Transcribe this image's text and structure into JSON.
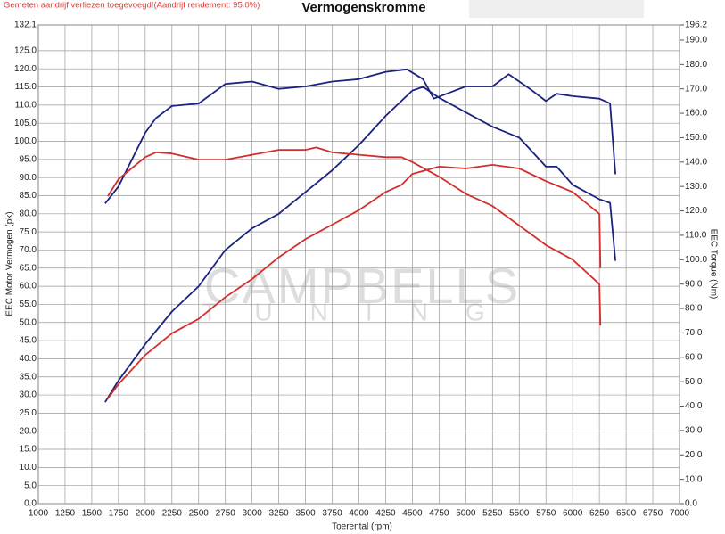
{
  "chart_data": {
    "type": "line",
    "subtitle": "Gemeten aandrijf verliezen toegevoegd!(Aandrijf rendement: 95.0%)",
    "title": "Vermogenskromme",
    "watermark": [
      "CAMPBELLS",
      "TUNING"
    ],
    "xlabel": "Toerental (rpm)",
    "ylabel": "EEC Motor Vermogen (pk)",
    "y2label": "EEC Torque (Nm)",
    "xlim": [
      1000,
      7000
    ],
    "xticks": [
      1000,
      1250,
      1500,
      1750,
      2000,
      2250,
      2500,
      2750,
      3000,
      3250,
      3500,
      3750,
      4000,
      4250,
      4500,
      4750,
      5000,
      5250,
      5500,
      5750,
      6000,
      6250,
      6500,
      6750,
      7000
    ],
    "ylim": [
      0,
      132.1
    ],
    "yticks": [
      {
        "value": 0,
        "label": "0.0"
      },
      {
        "value": 5,
        "label": "5.0"
      },
      {
        "value": 10,
        "label": "10.0"
      },
      {
        "value": 15,
        "label": "15.0"
      },
      {
        "value": 20,
        "label": "20.0"
      },
      {
        "value": 25,
        "label": "25.0"
      },
      {
        "value": 30,
        "label": "30.0"
      },
      {
        "value": 35,
        "label": "35.0"
      },
      {
        "value": 40,
        "label": "40.0"
      },
      {
        "value": 45,
        "label": "45.0"
      },
      {
        "value": 50,
        "label": "50.0"
      },
      {
        "value": 55,
        "label": "55.0"
      },
      {
        "value": 60,
        "label": "60.0"
      },
      {
        "value": 65,
        "label": "65.0"
      },
      {
        "value": 70,
        "label": "70.0"
      },
      {
        "value": 75,
        "label": "75.0"
      },
      {
        "value": 80,
        "label": "80.0"
      },
      {
        "value": 85,
        "label": "85.0"
      },
      {
        "value": 90,
        "label": "90.0"
      },
      {
        "value": 95,
        "label": "95.0"
      },
      {
        "value": 100,
        "label": "100.0"
      },
      {
        "value": 105,
        "label": "105.0"
      },
      {
        "value": 110,
        "label": "110.0"
      },
      {
        "value": 115,
        "label": "115.0"
      },
      {
        "value": 120,
        "label": "120.0"
      },
      {
        "value": 125,
        "label": "125.0"
      },
      132.1
    ],
    "y2lim": [
      0,
      196.2
    ],
    "y2ticks": [
      {
        "value": 0,
        "label": "0.0"
      },
      {
        "value": 10,
        "label": "10.0"
      },
      {
        "value": 20,
        "label": "20.0"
      },
      {
        "value": 30,
        "label": "30.0"
      },
      {
        "value": 40,
        "label": "40.0"
      },
      {
        "value": 50,
        "label": "50.0"
      },
      {
        "value": 60,
        "label": "60.0"
      },
      {
        "value": 70,
        "label": "70.0"
      },
      {
        "value": 80,
        "label": "80.0"
      },
      {
        "value": 90,
        "label": "90.0"
      },
      {
        "value": 100,
        "label": "100.0"
      },
      {
        "value": 110,
        "label": "110.0"
      },
      {
        "value": 120,
        "label": "120.0"
      },
      {
        "value": 130,
        "label": "130.0"
      },
      {
        "value": 140,
        "label": "140.0"
      },
      {
        "value": 150,
        "label": "150.0"
      },
      {
        "value": 160,
        "label": "160.0"
      },
      {
        "value": 170,
        "label": "170.0"
      },
      {
        "value": 180,
        "label": "180.0"
      },
      {
        "value": 190,
        "label": "190.0"
      },
      196.2
    ],
    "grid": true,
    "series": [
      {
        "color": "#1a237e",
        "x": [
          1625,
          1750,
          2000,
          2250,
          2500,
          2750,
          3000,
          3250,
          3500,
          3750,
          4000,
          4250,
          4500,
          4600,
          4750,
          5000,
          5250,
          5500,
          5750,
          5850,
          6000,
          6250,
          6350,
          6400
        ],
        "values": [
          28,
          34,
          44,
          53,
          60,
          70,
          76,
          80,
          86,
          92,
          99,
          107,
          114,
          115,
          112,
          108,
          104,
          101,
          93,
          93,
          88,
          84,
          83,
          67
        ]
      },
      {
        "color": "#1a237e",
        "axis": "y2",
        "x": [
          1625,
          1750,
          2000,
          2100,
          2250,
          2500,
          2750,
          3000,
          3250,
          3500,
          3750,
          4000,
          4250,
          4450,
          4600,
          4700,
          5000,
          5250,
          5400,
          5500,
          5600,
          5750,
          5850,
          6000,
          6250,
          6350,
          6400
        ],
        "values": [
          123,
          130,
          152,
          158,
          163,
          164,
          172,
          173,
          170,
          171,
          173,
          174,
          177,
          178,
          174,
          166,
          171,
          171,
          176,
          173,
          170,
          165,
          168,
          167,
          166,
          164,
          135
        ]
      },
      {
        "color": "#d32f2f",
        "axis": "y2",
        "x": [
          1650,
          1750,
          2000,
          2100,
          2250,
          2500,
          2750,
          3000,
          3250,
          3500,
          3600,
          3750,
          4000,
          4250,
          4400,
          4500,
          4750,
          5000,
          5250,
          5500,
          5750,
          6000,
          6250,
          6260
        ],
        "values": [
          126,
          133,
          142,
          144,
          143.5,
          141,
          141,
          143,
          145,
          145,
          146,
          144,
          143,
          142,
          142,
          140,
          134,
          127,
          122,
          114,
          106,
          100,
          90,
          73
        ]
      },
      {
        "color": "#d32f2f",
        "x": [
          1650,
          1750,
          2000,
          2250,
          2500,
          2750,
          3000,
          3250,
          3500,
          3750,
          4000,
          4250,
          4400,
          4500,
          4750,
          5000,
          5250,
          5500,
          5750,
          6000,
          6250,
          6260
        ],
        "values": [
          29,
          33,
          41,
          47,
          51,
          57,
          62,
          68,
          73,
          77,
          81,
          86,
          88,
          91,
          93,
          92.5,
          93.5,
          92.5,
          89,
          86,
          80,
          65
        ]
      }
    ]
  }
}
